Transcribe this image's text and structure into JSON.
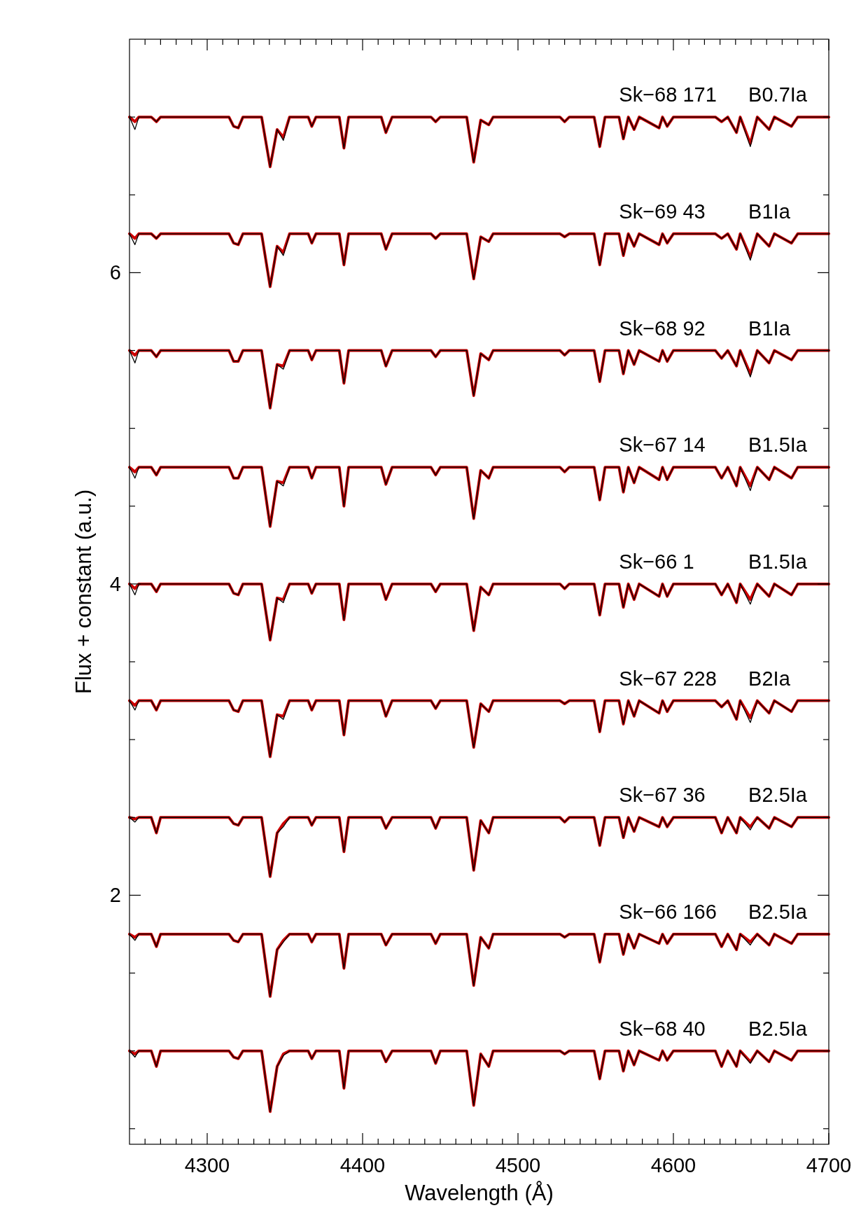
{
  "chart_data": {
    "type": "line",
    "xlabel": "Wavelength (Å)",
    "ylabel": "Flux + constant (a.u.)",
    "xlim": [
      4250,
      4700
    ],
    "ylim": [
      0.4,
      7.5
    ],
    "xticks": [
      {
        "value": 4260,
        "label": null
      },
      {
        "value": 4270,
        "label": null
      },
      {
        "value": 4280,
        "label": null
      },
      {
        "value": 4290,
        "label": null
      },
      4300,
      {
        "value": 4310,
        "label": null
      },
      {
        "value": 4320,
        "label": null
      },
      {
        "value": 4330,
        "label": null
      },
      {
        "value": 4340,
        "label": null
      },
      {
        "value": 4350,
        "label": null
      },
      {
        "value": 4360,
        "label": null
      },
      {
        "value": 4370,
        "label": null
      },
      {
        "value": 4380,
        "label": null
      },
      {
        "value": 4390,
        "label": null
      },
      4400,
      {
        "value": 4410,
        "label": null
      },
      {
        "value": 4420,
        "label": null
      },
      {
        "value": 4430,
        "label": null
      },
      {
        "value": 4440,
        "label": null
      },
      {
        "value": 4450,
        "label": null
      },
      {
        "value": 4460,
        "label": null
      },
      {
        "value": 4470,
        "label": null
      },
      {
        "value": 4480,
        "label": null
      },
      {
        "value": 4490,
        "label": null
      },
      4500,
      {
        "value": 4510,
        "label": null
      },
      {
        "value": 4520,
        "label": null
      },
      {
        "value": 4530,
        "label": null
      },
      {
        "value": 4540,
        "label": null
      },
      {
        "value": 4550,
        "label": null
      },
      {
        "value": 4560,
        "label": null
      },
      {
        "value": 4570,
        "label": null
      },
      {
        "value": 4580,
        "label": null
      },
      {
        "value": 4590,
        "label": null
      },
      4600,
      {
        "value": 4610,
        "label": null
      },
      {
        "value": 4620,
        "label": null
      },
      {
        "value": 4630,
        "label": null
      },
      {
        "value": 4640,
        "label": null
      },
      {
        "value": 4650,
        "label": null
      },
      {
        "value": 4660,
        "label": null
      },
      {
        "value": 4670,
        "label": null
      },
      {
        "value": 4680,
        "label": null
      },
      {
        "value": 4690,
        "label": null
      },
      4700
    ],
    "yticks": [
      {
        "value": 0.5,
        "label": null
      },
      {
        "value": 1,
        "label": null
      },
      {
        "value": 1.5,
        "label": null
      },
      2,
      {
        "value": 2.5,
        "label": null
      },
      {
        "value": 3,
        "label": null
      },
      {
        "value": 3.5,
        "label": null
      },
      4,
      {
        "value": 4.5,
        "label": null
      },
      {
        "value": 5,
        "label": null
      },
      {
        "value": 5.5,
        "label": null
      },
      6,
      {
        "value": 6.5,
        "label": null
      },
      {
        "value": 7,
        "label": null
      }
    ],
    "grid": false,
    "marker": "none",
    "line_style": "solid",
    "x": [
      4250,
      4253.5,
      4256,
      4264,
      4267.3,
      4270,
      4314,
      4317,
      4320,
      4323,
      4335,
      4340.5,
      4345,
      4349,
      4353,
      4365,
      4367.3,
      4370,
      4385,
      4388,
      4391,
      4412,
      4415,
      4419,
      4444,
      4447,
      4450,
      4467,
      4471.5,
      4476,
      4481.2,
      4484,
      4527,
      4530,
      4533,
      4549,
      4552.6,
      4556,
      4565,
      4567.8,
      4571,
      4574.7,
      4578,
      4590.8,
      4593,
      4596,
      4600,
      4627,
      4631,
      4635,
      4640.6,
      4643,
      4649.5,
      4654,
      4661.6,
      4665,
      4676,
      4680,
      4700
    ],
    "series": [
      {
        "color": "#000000",
        "values": [
          7.0,
          6.92,
          7.0,
          7.0,
          6.97,
          7.0,
          7.0,
          6.94,
          6.93,
          7.0,
          7.0,
          6.68,
          6.92,
          6.85,
          7.0,
          7.0,
          6.94,
          7.0,
          7.0,
          6.8,
          7.0,
          7.0,
          6.9,
          7.0,
          7.0,
          6.97,
          7.0,
          7.0,
          6.71,
          6.98,
          6.95,
          7.0,
          7.0,
          6.97,
          7.0,
          7.0,
          6.81,
          7.0,
          7.0,
          6.86,
          7.0,
          6.92,
          7.0,
          6.93,
          7.0,
          6.94,
          7.0,
          7.0,
          6.97,
          7.0,
          6.9,
          7.0,
          6.81,
          7.0,
          6.92,
          7.0,
          6.94,
          7.0,
          7.0
        ]
      },
      {
        "color": "#cc0000",
        "values": [
          7.0,
          6.97,
          7.0,
          7.0,
          6.97,
          7.0,
          7.0,
          6.94,
          6.93,
          7.0,
          7.0,
          6.68,
          6.92,
          6.87,
          7.0,
          7.0,
          6.94,
          7.0,
          7.0,
          6.8,
          7.0,
          7.0,
          6.9,
          7.0,
          7.0,
          6.97,
          7.0,
          7.0,
          6.71,
          6.98,
          6.95,
          7.0,
          7.0,
          6.97,
          7.0,
          7.0,
          6.81,
          7.0,
          7.0,
          6.86,
          7.0,
          6.92,
          7.0,
          6.93,
          7.0,
          6.94,
          7.0,
          7.0,
          6.97,
          7.0,
          6.9,
          7.0,
          6.83,
          7.0,
          6.92,
          7.0,
          6.94,
          7.0,
          7.0
        ]
      },
      {
        "color": "#000000",
        "values": [
          6.25,
          6.18,
          6.25,
          6.25,
          6.22,
          6.25,
          6.25,
          6.19,
          6.18,
          6.25,
          6.25,
          5.91,
          6.17,
          6.11,
          6.25,
          6.25,
          6.19,
          6.25,
          6.25,
          6.05,
          6.25,
          6.25,
          6.15,
          6.25,
          6.25,
          6.22,
          6.25,
          6.25,
          5.96,
          6.23,
          6.2,
          6.25,
          6.25,
          6.23,
          6.25,
          6.25,
          6.05,
          6.25,
          6.25,
          6.11,
          6.25,
          6.17,
          6.25,
          6.18,
          6.25,
          6.19,
          6.25,
          6.25,
          6.22,
          6.25,
          6.15,
          6.25,
          6.08,
          6.25,
          6.17,
          6.25,
          6.19,
          6.25,
          6.25
        ]
      },
      {
        "color": "#cc0000",
        "values": [
          6.25,
          6.22,
          6.25,
          6.25,
          6.22,
          6.25,
          6.25,
          6.19,
          6.18,
          6.25,
          6.25,
          5.91,
          6.17,
          6.13,
          6.25,
          6.25,
          6.19,
          6.25,
          6.25,
          6.05,
          6.25,
          6.25,
          6.15,
          6.25,
          6.25,
          6.22,
          6.25,
          6.25,
          5.96,
          6.23,
          6.2,
          6.25,
          6.25,
          6.23,
          6.25,
          6.25,
          6.05,
          6.25,
          6.25,
          6.11,
          6.25,
          6.17,
          6.25,
          6.18,
          6.25,
          6.19,
          6.25,
          6.25,
          6.22,
          6.25,
          6.15,
          6.25,
          6.1,
          6.25,
          6.17,
          6.25,
          6.19,
          6.25,
          6.25
        ]
      },
      {
        "color": "#000000",
        "values": [
          5.5,
          5.42,
          5.5,
          5.5,
          5.46,
          5.5,
          5.5,
          5.43,
          5.43,
          5.5,
          5.5,
          5.13,
          5.41,
          5.38,
          5.5,
          5.5,
          5.44,
          5.5,
          5.5,
          5.29,
          5.5,
          5.5,
          5.4,
          5.5,
          5.5,
          5.46,
          5.5,
          5.5,
          5.21,
          5.48,
          5.44,
          5.5,
          5.5,
          5.47,
          5.5,
          5.5,
          5.3,
          5.5,
          5.5,
          5.35,
          5.5,
          5.41,
          5.5,
          5.43,
          5.5,
          5.43,
          5.5,
          5.5,
          5.45,
          5.5,
          5.4,
          5.5,
          5.33,
          5.5,
          5.42,
          5.5,
          5.44,
          5.5,
          5.5
        ]
      },
      {
        "color": "#cc0000",
        "values": [
          5.5,
          5.47,
          5.5,
          5.5,
          5.46,
          5.5,
          5.5,
          5.43,
          5.43,
          5.5,
          5.5,
          5.13,
          5.41,
          5.4,
          5.5,
          5.5,
          5.44,
          5.5,
          5.5,
          5.29,
          5.5,
          5.5,
          5.4,
          5.5,
          5.5,
          5.46,
          5.5,
          5.5,
          5.21,
          5.48,
          5.44,
          5.5,
          5.5,
          5.47,
          5.5,
          5.5,
          5.3,
          5.5,
          5.5,
          5.35,
          5.5,
          5.41,
          5.5,
          5.43,
          5.5,
          5.43,
          5.5,
          5.5,
          5.45,
          5.5,
          5.4,
          5.5,
          5.35,
          5.5,
          5.42,
          5.5,
          5.44,
          5.5,
          5.5
        ]
      },
      {
        "color": "#000000",
        "values": [
          4.75,
          4.68,
          4.75,
          4.75,
          4.7,
          4.75,
          4.75,
          4.68,
          4.68,
          4.75,
          4.75,
          4.37,
          4.66,
          4.63,
          4.75,
          4.75,
          4.68,
          4.75,
          4.75,
          4.5,
          4.75,
          4.75,
          4.64,
          4.75,
          4.75,
          4.7,
          4.75,
          4.75,
          4.42,
          4.73,
          4.68,
          4.75,
          4.75,
          4.72,
          4.75,
          4.75,
          4.54,
          4.75,
          4.75,
          4.59,
          4.75,
          4.65,
          4.75,
          4.67,
          4.75,
          4.67,
          4.75,
          4.75,
          4.68,
          4.75,
          4.63,
          4.75,
          4.6,
          4.75,
          4.67,
          4.75,
          4.68,
          4.75,
          4.75
        ]
      },
      {
        "color": "#cc0000",
        "values": [
          4.75,
          4.72,
          4.75,
          4.75,
          4.7,
          4.75,
          4.75,
          4.68,
          4.68,
          4.75,
          4.75,
          4.37,
          4.66,
          4.65,
          4.75,
          4.75,
          4.68,
          4.75,
          4.75,
          4.5,
          4.75,
          4.75,
          4.64,
          4.75,
          4.75,
          4.7,
          4.75,
          4.75,
          4.42,
          4.73,
          4.68,
          4.75,
          4.75,
          4.72,
          4.75,
          4.75,
          4.54,
          4.75,
          4.75,
          4.59,
          4.75,
          4.65,
          4.75,
          4.67,
          4.75,
          4.67,
          4.75,
          4.75,
          4.68,
          4.75,
          4.63,
          4.75,
          4.63,
          4.75,
          4.67,
          4.75,
          4.68,
          4.75,
          4.75
        ]
      },
      {
        "color": "#000000",
        "values": [
          4.0,
          3.93,
          4.0,
          4.0,
          3.95,
          4.0,
          4.0,
          3.94,
          3.93,
          4.0,
          4.0,
          3.64,
          3.91,
          3.88,
          4.0,
          4.0,
          3.94,
          4.0,
          4.0,
          3.77,
          4.0,
          4.0,
          3.9,
          4.0,
          4.0,
          3.95,
          4.0,
          4.0,
          3.7,
          3.98,
          3.93,
          4.0,
          4.0,
          3.97,
          4.0,
          4.0,
          3.8,
          4.0,
          4.0,
          3.85,
          4.0,
          3.9,
          4.0,
          3.92,
          4.0,
          3.92,
          4.0,
          4.0,
          3.93,
          4.0,
          3.88,
          4.0,
          3.87,
          4.0,
          3.92,
          4.0,
          3.93,
          4.0,
          4.0
        ]
      },
      {
        "color": "#cc0000",
        "values": [
          4.0,
          3.97,
          4.0,
          4.0,
          3.95,
          4.0,
          4.0,
          3.94,
          3.93,
          4.0,
          4.0,
          3.64,
          3.91,
          3.9,
          4.0,
          4.0,
          3.94,
          4.0,
          4.0,
          3.77,
          4.0,
          4.0,
          3.9,
          4.0,
          4.0,
          3.95,
          4.0,
          4.0,
          3.7,
          3.98,
          3.93,
          4.0,
          4.0,
          3.97,
          4.0,
          4.0,
          3.8,
          4.0,
          4.0,
          3.85,
          4.0,
          3.9,
          4.0,
          3.92,
          4.0,
          3.92,
          4.0,
          4.0,
          3.93,
          4.0,
          3.88,
          4.0,
          3.9,
          4.0,
          3.92,
          4.0,
          3.93,
          4.0,
          4.0
        ]
      },
      {
        "color": "#000000",
        "values": [
          3.25,
          3.19,
          3.25,
          3.25,
          3.19,
          3.25,
          3.25,
          3.19,
          3.18,
          3.25,
          3.25,
          2.89,
          3.16,
          3.13,
          3.25,
          3.25,
          3.19,
          3.25,
          3.25,
          3.03,
          3.25,
          3.25,
          3.15,
          3.25,
          3.25,
          3.2,
          3.25,
          3.25,
          2.95,
          3.23,
          3.18,
          3.25,
          3.25,
          3.23,
          3.25,
          3.25,
          3.05,
          3.25,
          3.25,
          3.1,
          3.25,
          3.15,
          3.25,
          3.17,
          3.25,
          3.18,
          3.25,
          3.25,
          3.21,
          3.25,
          3.13,
          3.25,
          3.11,
          3.25,
          3.17,
          3.25,
          3.18,
          3.25,
          3.25
        ]
      },
      {
        "color": "#cc0000",
        "values": [
          3.25,
          3.22,
          3.25,
          3.25,
          3.19,
          3.25,
          3.25,
          3.19,
          3.18,
          3.25,
          3.25,
          2.89,
          3.16,
          3.15,
          3.25,
          3.25,
          3.19,
          3.25,
          3.25,
          3.03,
          3.25,
          3.25,
          3.15,
          3.25,
          3.25,
          3.2,
          3.25,
          3.25,
          2.95,
          3.23,
          3.18,
          3.25,
          3.25,
          3.23,
          3.25,
          3.25,
          3.05,
          3.25,
          3.25,
          3.1,
          3.25,
          3.15,
          3.25,
          3.17,
          3.25,
          3.18,
          3.25,
          3.25,
          3.21,
          3.25,
          3.13,
          3.25,
          3.14,
          3.25,
          3.17,
          3.25,
          3.18,
          3.25,
          3.25
        ]
      },
      {
        "color": "#000000",
        "values": [
          2.5,
          2.47,
          2.5,
          2.5,
          2.4,
          2.5,
          2.5,
          2.46,
          2.45,
          2.5,
          2.5,
          2.12,
          2.4,
          2.44,
          2.5,
          2.5,
          2.45,
          2.5,
          2.5,
          2.28,
          2.5,
          2.5,
          2.43,
          2.5,
          2.5,
          2.43,
          2.5,
          2.5,
          2.16,
          2.48,
          2.4,
          2.5,
          2.5,
          2.47,
          2.5,
          2.5,
          2.32,
          2.5,
          2.5,
          2.37,
          2.5,
          2.41,
          2.5,
          2.44,
          2.5,
          2.44,
          2.5,
          2.5,
          2.4,
          2.5,
          2.4,
          2.5,
          2.42,
          2.5,
          2.43,
          2.5,
          2.44,
          2.5,
          2.5
        ]
      },
      {
        "color": "#cc0000",
        "values": [
          2.5,
          2.49,
          2.5,
          2.5,
          2.4,
          2.5,
          2.5,
          2.46,
          2.45,
          2.5,
          2.5,
          2.12,
          2.4,
          2.46,
          2.5,
          2.5,
          2.45,
          2.5,
          2.5,
          2.28,
          2.5,
          2.5,
          2.43,
          2.5,
          2.5,
          2.43,
          2.5,
          2.5,
          2.16,
          2.48,
          2.4,
          2.5,
          2.5,
          2.47,
          2.5,
          2.5,
          2.32,
          2.5,
          2.5,
          2.37,
          2.5,
          2.41,
          2.5,
          2.44,
          2.5,
          2.44,
          2.5,
          2.5,
          2.4,
          2.5,
          2.4,
          2.5,
          2.44,
          2.5,
          2.43,
          2.5,
          2.44,
          2.5,
          2.5
        ]
      },
      {
        "color": "#000000",
        "values": [
          1.75,
          1.71,
          1.75,
          1.75,
          1.67,
          1.75,
          1.75,
          1.71,
          1.7,
          1.75,
          1.75,
          1.35,
          1.65,
          1.7,
          1.75,
          1.75,
          1.7,
          1.75,
          1.75,
          1.53,
          1.75,
          1.75,
          1.68,
          1.75,
          1.75,
          1.69,
          1.75,
          1.75,
          1.42,
          1.73,
          1.66,
          1.75,
          1.75,
          1.73,
          1.75,
          1.75,
          1.57,
          1.75,
          1.75,
          1.62,
          1.75,
          1.66,
          1.75,
          1.69,
          1.75,
          1.69,
          1.75,
          1.75,
          1.67,
          1.75,
          1.65,
          1.75,
          1.68,
          1.75,
          1.68,
          1.75,
          1.69,
          1.75,
          1.75
        ]
      },
      {
        "color": "#cc0000",
        "values": [
          1.75,
          1.73,
          1.75,
          1.75,
          1.67,
          1.75,
          1.75,
          1.71,
          1.7,
          1.75,
          1.75,
          1.35,
          1.65,
          1.71,
          1.75,
          1.75,
          1.7,
          1.75,
          1.75,
          1.53,
          1.75,
          1.75,
          1.68,
          1.75,
          1.75,
          1.69,
          1.75,
          1.75,
          1.42,
          1.73,
          1.66,
          1.75,
          1.75,
          1.73,
          1.75,
          1.75,
          1.57,
          1.75,
          1.75,
          1.62,
          1.75,
          1.66,
          1.75,
          1.69,
          1.75,
          1.69,
          1.75,
          1.75,
          1.67,
          1.75,
          1.65,
          1.75,
          1.7,
          1.75,
          1.68,
          1.75,
          1.69,
          1.75,
          1.75
        ]
      },
      {
        "color": "#000000",
        "values": [
          1.0,
          0.96,
          1.0,
          1.0,
          0.9,
          1.0,
          1.0,
          0.96,
          0.95,
          1.0,
          1.0,
          0.61,
          0.9,
          0.97,
          1.0,
          1.0,
          0.95,
          1.0,
          1.0,
          0.76,
          1.0,
          1.0,
          0.93,
          1.0,
          1.0,
          0.92,
          1.0,
          1.0,
          0.65,
          0.98,
          0.9,
          1.0,
          1.0,
          0.98,
          1.0,
          1.0,
          0.82,
          1.0,
          1.0,
          0.87,
          1.0,
          0.91,
          1.0,
          0.94,
          1.0,
          0.94,
          1.0,
          1.0,
          0.9,
          1.0,
          0.9,
          1.0,
          0.92,
          1.0,
          0.93,
          1.0,
          0.94,
          1.0,
          1.0
        ]
      },
      {
        "color": "#cc0000",
        "values": [
          1.0,
          0.98,
          1.0,
          1.0,
          0.9,
          1.0,
          1.0,
          0.96,
          0.95,
          1.0,
          1.0,
          0.61,
          0.9,
          0.98,
          1.0,
          1.0,
          0.95,
          1.0,
          1.0,
          0.76,
          1.0,
          1.0,
          0.93,
          1.0,
          1.0,
          0.92,
          1.0,
          1.0,
          0.65,
          0.98,
          0.9,
          1.0,
          1.0,
          0.98,
          1.0,
          1.0,
          0.82,
          1.0,
          1.0,
          0.87,
          1.0,
          0.91,
          1.0,
          0.94,
          1.0,
          0.94,
          1.0,
          1.0,
          0.9,
          1.0,
          0.9,
          1.0,
          0.93,
          1.0,
          0.93,
          1.0,
          0.94,
          1.0,
          1.0
        ]
      }
    ],
    "annotations": [
      "Sk−68 171",
      "B0.7Ia",
      "Sk−69 43",
      "B1Ia",
      "Sk−68 92",
      "B1Ia",
      "Sk−67 14",
      "B1.5Ia",
      "Sk−66 1",
      "B1.5Ia",
      "Sk−67 228",
      "B2Ia",
      "Sk−67 36",
      "B2.5Ia",
      "Sk−66 166",
      "B2.5Ia",
      "Sk−68 40",
      "B2.5Ia"
    ]
  }
}
